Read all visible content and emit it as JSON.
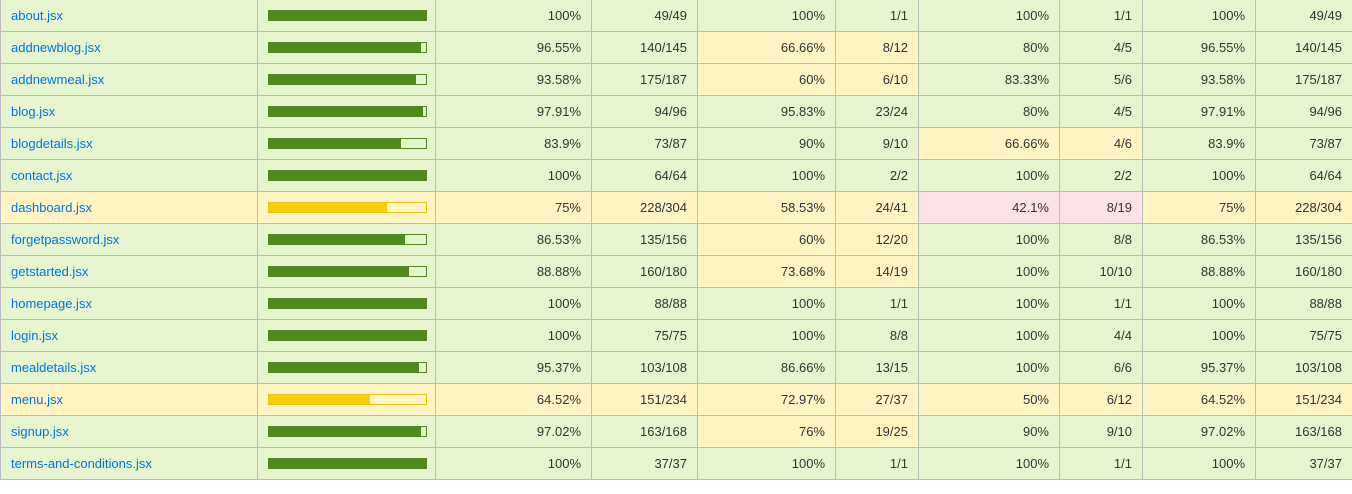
{
  "colors": {
    "high": "#e6f5d0",
    "medium": "#fff4c2",
    "low": "#fce1e5",
    "bar_high": "#4d8a1b",
    "bar_medium": "#f9cd0b",
    "link": "#0074D9"
  },
  "rows": [
    {
      "file": "about.jsx",
      "level": "high",
      "bar_fraction": 1.0,
      "statements": {
        "pct": "100%",
        "count": "49/49",
        "level": "high"
      },
      "branches": {
        "pct": "100%",
        "count": "1/1",
        "level": "high"
      },
      "functions": {
        "pct": "100%",
        "count": "1/1",
        "level": "high"
      },
      "lines": {
        "pct": "100%",
        "count": "49/49",
        "level": "high"
      }
    },
    {
      "file": "addnewblog.jsx",
      "level": "high",
      "bar_fraction": 0.9655,
      "statements": {
        "pct": "96.55%",
        "count": "140/145",
        "level": "high"
      },
      "branches": {
        "pct": "66.66%",
        "count": "8/12",
        "level": "medium"
      },
      "functions": {
        "pct": "80%",
        "count": "4/5",
        "level": "high"
      },
      "lines": {
        "pct": "96.55%",
        "count": "140/145",
        "level": "high"
      }
    },
    {
      "file": "addnewmeal.jsx",
      "level": "high",
      "bar_fraction": 0.9358,
      "statements": {
        "pct": "93.58%",
        "count": "175/187",
        "level": "high"
      },
      "branches": {
        "pct": "60%",
        "count": "6/10",
        "level": "medium"
      },
      "functions": {
        "pct": "83.33%",
        "count": "5/6",
        "level": "high"
      },
      "lines": {
        "pct": "93.58%",
        "count": "175/187",
        "level": "high"
      }
    },
    {
      "file": "blog.jsx",
      "level": "high",
      "bar_fraction": 0.9791,
      "statements": {
        "pct": "97.91%",
        "count": "94/96",
        "level": "high"
      },
      "branches": {
        "pct": "95.83%",
        "count": "23/24",
        "level": "high"
      },
      "functions": {
        "pct": "80%",
        "count": "4/5",
        "level": "high"
      },
      "lines": {
        "pct": "97.91%",
        "count": "94/96",
        "level": "high"
      }
    },
    {
      "file": "blogdetails.jsx",
      "level": "high",
      "bar_fraction": 0.839,
      "statements": {
        "pct": "83.9%",
        "count": "73/87",
        "level": "high"
      },
      "branches": {
        "pct": "90%",
        "count": "9/10",
        "level": "high"
      },
      "functions": {
        "pct": "66.66%",
        "count": "4/6",
        "level": "medium"
      },
      "lines": {
        "pct": "83.9%",
        "count": "73/87",
        "level": "high"
      }
    },
    {
      "file": "contact.jsx",
      "level": "high",
      "bar_fraction": 1.0,
      "statements": {
        "pct": "100%",
        "count": "64/64",
        "level": "high"
      },
      "branches": {
        "pct": "100%",
        "count": "2/2",
        "level": "high"
      },
      "functions": {
        "pct": "100%",
        "count": "2/2",
        "level": "high"
      },
      "lines": {
        "pct": "100%",
        "count": "64/64",
        "level": "high"
      }
    },
    {
      "file": "dashboard.jsx",
      "level": "medium",
      "bar_fraction": 0.75,
      "statements": {
        "pct": "75%",
        "count": "228/304",
        "level": "medium"
      },
      "branches": {
        "pct": "58.53%",
        "count": "24/41",
        "level": "medium"
      },
      "functions": {
        "pct": "42.1%",
        "count": "8/19",
        "level": "low"
      },
      "lines": {
        "pct": "75%",
        "count": "228/304",
        "level": "medium"
      }
    },
    {
      "file": "forgetpassword.jsx",
      "level": "high",
      "bar_fraction": 0.8653,
      "statements": {
        "pct": "86.53%",
        "count": "135/156",
        "level": "high"
      },
      "branches": {
        "pct": "60%",
        "count": "12/20",
        "level": "medium"
      },
      "functions": {
        "pct": "100%",
        "count": "8/8",
        "level": "high"
      },
      "lines": {
        "pct": "86.53%",
        "count": "135/156",
        "level": "high"
      }
    },
    {
      "file": "getstarted.jsx",
      "level": "high",
      "bar_fraction": 0.8888,
      "statements": {
        "pct": "88.88%",
        "count": "160/180",
        "level": "high"
      },
      "branches": {
        "pct": "73.68%",
        "count": "14/19",
        "level": "medium"
      },
      "functions": {
        "pct": "100%",
        "count": "10/10",
        "level": "high"
      },
      "lines": {
        "pct": "88.88%",
        "count": "160/180",
        "level": "high"
      }
    },
    {
      "file": "homepage.jsx",
      "level": "high",
      "bar_fraction": 1.0,
      "statements": {
        "pct": "100%",
        "count": "88/88",
        "level": "high"
      },
      "branches": {
        "pct": "100%",
        "count": "1/1",
        "level": "high"
      },
      "functions": {
        "pct": "100%",
        "count": "1/1",
        "level": "high"
      },
      "lines": {
        "pct": "100%",
        "count": "88/88",
        "level": "high"
      }
    },
    {
      "file": "login.jsx",
      "level": "high",
      "bar_fraction": 1.0,
      "statements": {
        "pct": "100%",
        "count": "75/75",
        "level": "high"
      },
      "branches": {
        "pct": "100%",
        "count": "8/8",
        "level": "high"
      },
      "functions": {
        "pct": "100%",
        "count": "4/4",
        "level": "high"
      },
      "lines": {
        "pct": "100%",
        "count": "75/75",
        "level": "high"
      }
    },
    {
      "file": "mealdetails.jsx",
      "level": "high",
      "bar_fraction": 0.9537,
      "statements": {
        "pct": "95.37%",
        "count": "103/108",
        "level": "high"
      },
      "branches": {
        "pct": "86.66%",
        "count": "13/15",
        "level": "high"
      },
      "functions": {
        "pct": "100%",
        "count": "6/6",
        "level": "high"
      },
      "lines": {
        "pct": "95.37%",
        "count": "103/108",
        "level": "high"
      }
    },
    {
      "file": "menu.jsx",
      "level": "medium",
      "bar_fraction": 0.6452,
      "statements": {
        "pct": "64.52%",
        "count": "151/234",
        "level": "medium"
      },
      "branches": {
        "pct": "72.97%",
        "count": "27/37",
        "level": "medium"
      },
      "functions": {
        "pct": "50%",
        "count": "6/12",
        "level": "medium"
      },
      "lines": {
        "pct": "64.52%",
        "count": "151/234",
        "level": "medium"
      }
    },
    {
      "file": "signup.jsx",
      "level": "high",
      "bar_fraction": 0.9702,
      "statements": {
        "pct": "97.02%",
        "count": "163/168",
        "level": "high"
      },
      "branches": {
        "pct": "76%",
        "count": "19/25",
        "level": "medium"
      },
      "functions": {
        "pct": "90%",
        "count": "9/10",
        "level": "high"
      },
      "lines": {
        "pct": "97.02%",
        "count": "163/168",
        "level": "high"
      }
    },
    {
      "file": "terms-and-conditions.jsx",
      "level": "high",
      "bar_fraction": 1.0,
      "statements": {
        "pct": "100%",
        "count": "37/37",
        "level": "high"
      },
      "branches": {
        "pct": "100%",
        "count": "1/1",
        "level": "high"
      },
      "functions": {
        "pct": "100%",
        "count": "1/1",
        "level": "high"
      },
      "lines": {
        "pct": "100%",
        "count": "37/37",
        "level": "high"
      }
    }
  ]
}
